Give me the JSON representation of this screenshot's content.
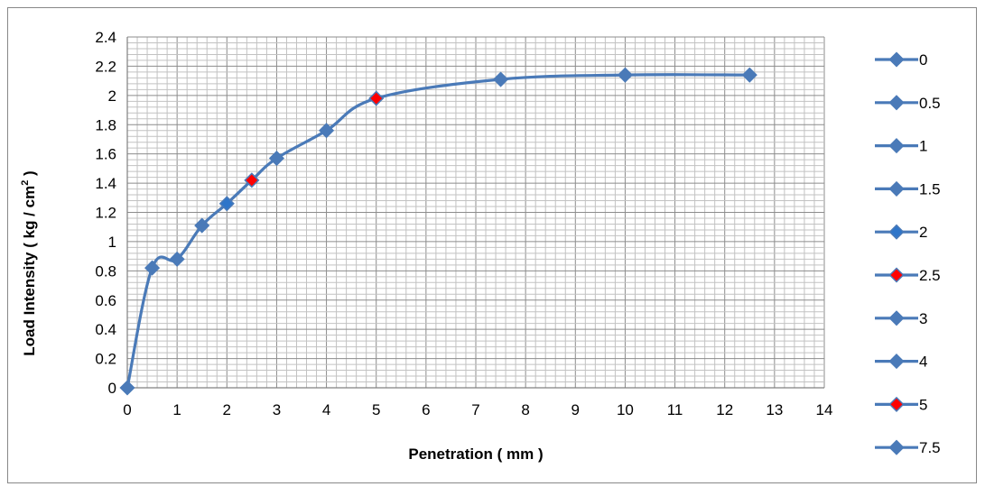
{
  "chart_data": {
    "type": "line",
    "title": "",
    "xlabel": "Penetration ( mm )",
    "ylabel_main": "Load Intensity  ( kg / cm",
    "ylabel_sup": "2",
    "ylabel_end": " )",
    "xlim": [
      0,
      14
    ],
    "ylim": [
      0,
      2.4
    ],
    "x_ticks": [
      "0",
      "1",
      "2",
      "3",
      "4",
      "5",
      "6",
      "7",
      "8",
      "9",
      "10",
      "11",
      "12",
      "13",
      "14"
    ],
    "y_ticks": [
      "0",
      "0.2",
      "0.4",
      "0.6",
      "0.8",
      "1",
      "1.2",
      "1.4",
      "1.6",
      "1.8",
      "2",
      "2.2",
      "2.4"
    ],
    "grid": true,
    "legend_position": "right",
    "line_color": "#4a7ab8",
    "marker_color": "#4a7ab8",
    "highlight_colors": {
      "2": "#2e75c9",
      "2.5": "#ff0000",
      "5": "#ff0000"
    },
    "series": [
      {
        "name": "0",
        "x": 0,
        "y": 0
      },
      {
        "name": "0.5",
        "x": 0.5,
        "y": 0.82
      },
      {
        "name": "1",
        "x": 1,
        "y": 0.88
      },
      {
        "name": "1.5",
        "x": 1.5,
        "y": 1.11
      },
      {
        "name": "2",
        "x": 2,
        "y": 1.26
      },
      {
        "name": "2.5",
        "x": 2.5,
        "y": 1.42
      },
      {
        "name": "3",
        "x": 3,
        "y": 1.57
      },
      {
        "name": "4",
        "x": 4,
        "y": 1.76
      },
      {
        "name": "5",
        "x": 5,
        "y": 1.98
      },
      {
        "name": "7.5",
        "x": 7.5,
        "y": 2.11
      },
      {
        "name": "",
        "x": 10,
        "y": 2.14
      },
      {
        "name": "",
        "x": 12.5,
        "y": 2.14
      }
    ]
  }
}
